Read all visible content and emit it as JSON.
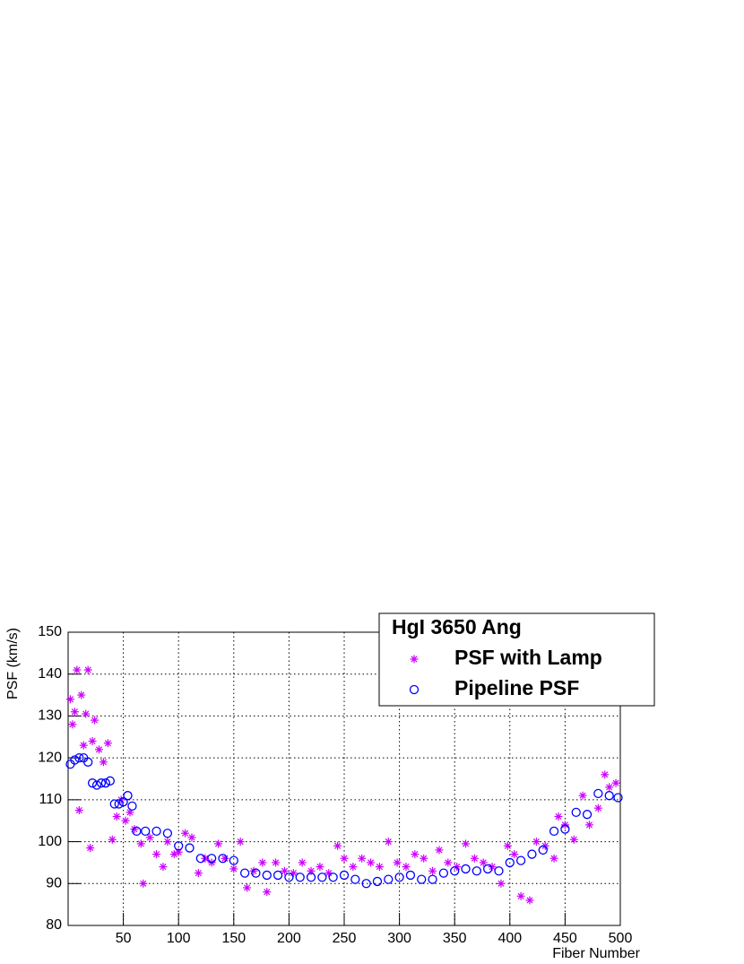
{
  "chart_data": {
    "type": "scatter",
    "title": "HgI 3650 Ang",
    "x_label": "Fiber Number",
    "y_label": "PSF  (km/s)",
    "xlim": [
      0,
      500
    ],
    "ylim": [
      80,
      150
    ],
    "xticks": [
      50,
      100,
      150,
      200,
      250,
      300,
      350,
      400,
      450,
      500
    ],
    "yticks": [
      80,
      90,
      100,
      110,
      120,
      130,
      140,
      150
    ],
    "grid": true,
    "legend": "top-right",
    "series": [
      {
        "name": "PSF with Lamp",
        "color": "#cc00ff",
        "marker": "asterisk",
        "x": [
          2,
          4,
          6,
          8,
          10,
          12,
          14,
          16,
          18,
          20,
          22,
          24,
          28,
          32,
          36,
          40,
          44,
          48,
          52,
          56,
          60,
          66,
          68,
          74,
          80,
          86,
          90,
          96,
          100,
          106,
          112,
          118,
          124,
          130,
          136,
          142,
          150,
          156,
          162,
          168,
          176,
          180,
          188,
          196,
          204,
          212,
          220,
          228,
          236,
          244,
          250,
          258,
          266,
          274,
          282,
          290,
          298,
          306,
          314,
          322,
          330,
          336,
          344,
          352,
          360,
          368,
          376,
          384,
          392,
          398,
          404,
          410,
          418,
          424,
          432,
          440,
          444,
          450,
          458,
          466,
          472,
          480,
          486,
          490,
          496
        ],
        "values": [
          134,
          128,
          131,
          141,
          107.5,
          135,
          123,
          130.5,
          141,
          98.5,
          124,
          129,
          122,
          119,
          123.5,
          100.5,
          106,
          110,
          105,
          107,
          103,
          99.5,
          90,
          101,
          97,
          94,
          100,
          97,
          97.5,
          102,
          101,
          92.5,
          96,
          95,
          99.5,
          96,
          93.5,
          100,
          89,
          93,
          95,
          88,
          95,
          93,
          92.5,
          95,
          93,
          94,
          92.5,
          99,
          96,
          94,
          96,
          95,
          94,
          100,
          95,
          94,
          97,
          96,
          93,
          98,
          95,
          94,
          99.5,
          96,
          95,
          94,
          90,
          99,
          97,
          87,
          86,
          100,
          99,
          96,
          106,
          104,
          100.5,
          111,
          104,
          108,
          116,
          113,
          114
        ]
      },
      {
        "name": "Pipeline PSF",
        "color": "#0000ff",
        "marker": "circle",
        "x": [
          2,
          6,
          10,
          14,
          18,
          22,
          26,
          30,
          34,
          38,
          42,
          46,
          50,
          54,
          58,
          62,
          70,
          80,
          90,
          100,
          110,
          120,
          130,
          140,
          150,
          160,
          170,
          180,
          190,
          200,
          210,
          220,
          230,
          240,
          250,
          260,
          270,
          280,
          290,
          300,
          310,
          320,
          330,
          340,
          350,
          360,
          370,
          380,
          390,
          400,
          410,
          420,
          430,
          440,
          450,
          460,
          470,
          480,
          490,
          498
        ],
        "values": [
          118.5,
          119.5,
          120,
          120,
          119,
          114,
          113.5,
          114,
          114,
          114.5,
          109,
          109,
          109.5,
          111,
          108.5,
          102.5,
          102.5,
          102.5,
          102,
          99,
          98.5,
          96,
          96,
          96,
          95.5,
          92.5,
          92.5,
          92,
          92,
          91.5,
          91.5,
          91.5,
          91.5,
          91.5,
          92,
          91,
          90,
          90.5,
          91,
          91.5,
          92,
          91,
          91,
          92.5,
          93,
          93.5,
          93,
          93.5,
          93,
          95,
          95.5,
          97,
          98,
          102.5,
          103,
          107,
          106.5,
          111.5,
          111,
          110.5
        ]
      }
    ]
  }
}
